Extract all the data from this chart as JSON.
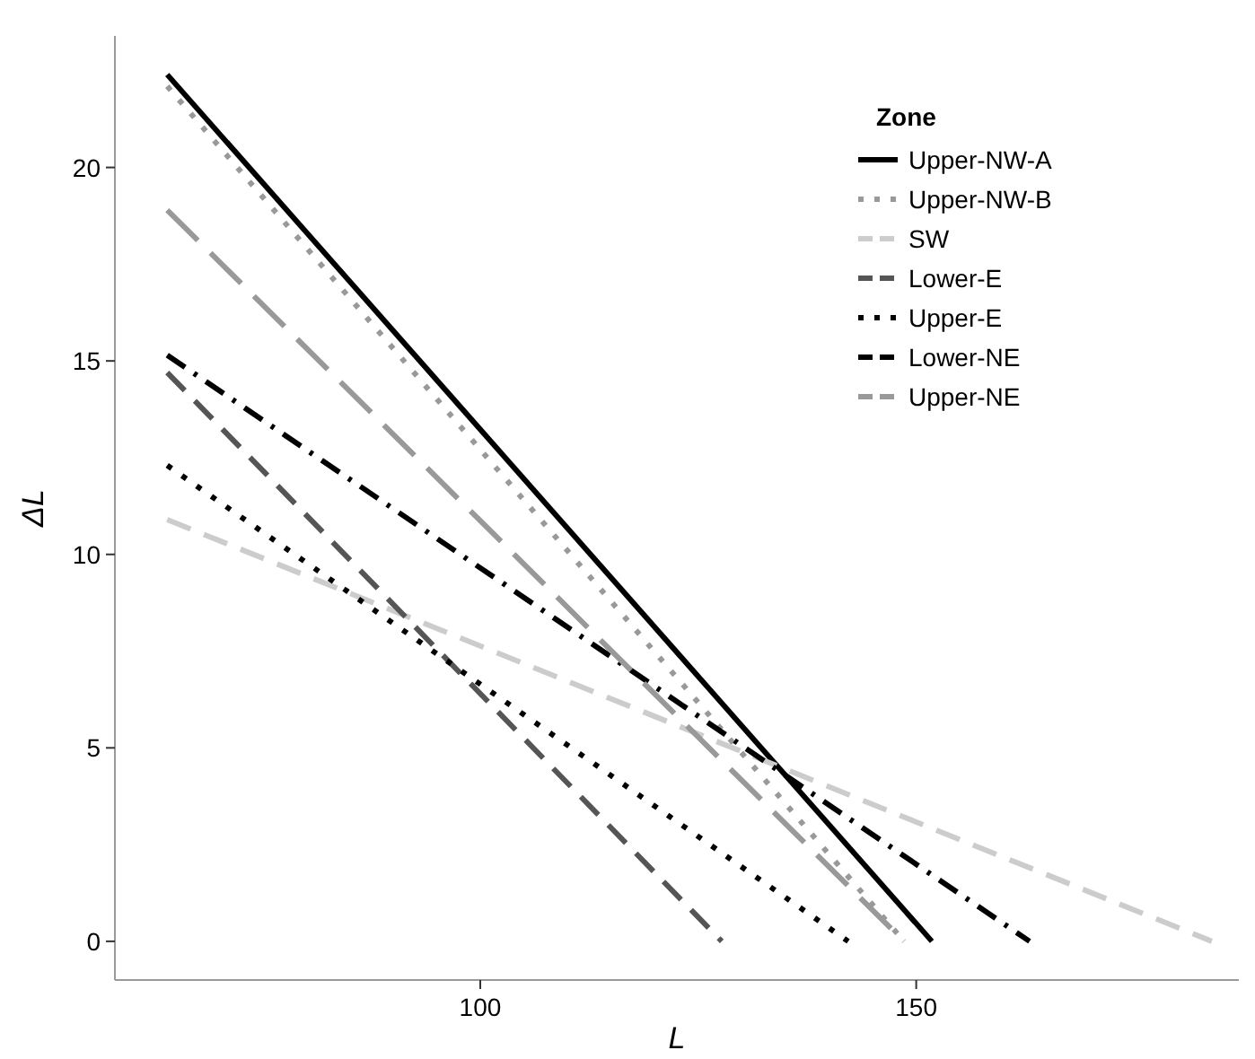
{
  "chart_data": {
    "type": "line",
    "xlabel": "L",
    "ylabel": "ΔL",
    "legend_title": "Zone",
    "legend": "top right",
    "grid": false,
    "xlim": [
      58.1,
      187
    ],
    "ylim": [
      -1,
      23.4
    ],
    "xticks": [
      100,
      150
    ],
    "yticks": [
      0,
      5,
      10,
      15,
      20
    ],
    "series": [
      {
        "name": "Upper-NW-A",
        "color": "#000000",
        "line_style": "solid",
        "x": [
          64.1,
          151.8
        ],
        "values": [
          22.4,
          0
        ]
      },
      {
        "name": "Upper-NW-B",
        "color": "#999999",
        "line_style": "dotted",
        "x": [
          64.1,
          148.6
        ],
        "values": [
          22.1,
          0
        ]
      },
      {
        "name": "SW",
        "color": "#cccccc",
        "line_style": "dashed",
        "x": [
          64.1,
          183.9
        ],
        "values": [
          10.9,
          0
        ]
      },
      {
        "name": "Lower-E",
        "color": "#555555",
        "line_style": "dashed",
        "x": [
          64.1,
          127.7
        ],
        "values": [
          14.7,
          0
        ]
      },
      {
        "name": "Upper-E",
        "color": "#000000",
        "line_style": "dotted",
        "x": [
          64.1,
          142.2
        ],
        "values": [
          12.3,
          0
        ]
      },
      {
        "name": "Lower-NE",
        "color": "#000000",
        "line_style": "dashdot",
        "x": [
          64.1,
          163
        ],
        "values": [
          15.15,
          0
        ]
      },
      {
        "name": "Upper-NE",
        "color": "#999999",
        "line_style": "longdash",
        "x": [
          64.1,
          148.6
        ],
        "values": [
          18.9,
          0
        ]
      }
    ]
  }
}
